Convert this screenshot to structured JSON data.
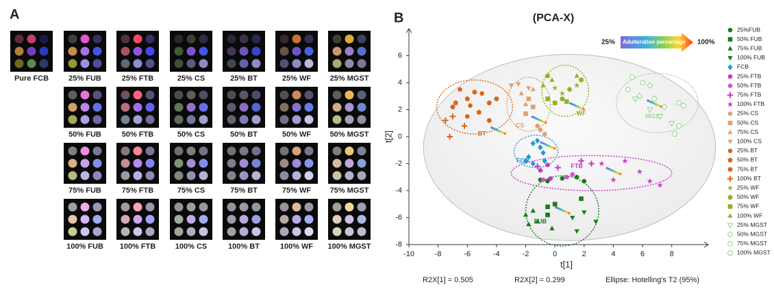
{
  "panel_a": {
    "label": "A",
    "tiles": [
      [
        "Pure FCB"
      ],
      [
        "25% FUB",
        "25% FTB",
        "25% CS",
        "25% BT",
        "25% WF",
        "25% MGST"
      ],
      [
        "50% FUB",
        "50% FTB",
        "50% CS",
        "50% BT",
        "50% WF",
        "50% MGST"
      ],
      [
        "75% FUB",
        "75% FTB",
        "75% CS",
        "75% BT",
        "75% WF",
        "75% MGST"
      ],
      [
        "100% FUB",
        "100% FTB",
        "100% CS",
        "100% BT",
        "100% WF",
        "100% MGST"
      ]
    ]
  },
  "chart_data": {
    "type": "scatter",
    "panel_label": "B",
    "title": "(PCA-X)",
    "x_label": "t[1]",
    "y_label": "t[2]",
    "xlim": [
      -10,
      10.5
    ],
    "ylim": [
      -8,
      8
    ],
    "xticks": [
      -10,
      -8,
      -6,
      -4,
      -2,
      0,
      2,
      4,
      6,
      8
    ],
    "yticks": [
      -8,
      -6,
      -4,
      -2,
      0,
      2,
      4,
      6
    ],
    "footer": [
      "R2X[1] = 0.505",
      "R2X[2] = 0.299",
      "Ellipse: Hotelling's T2 (95%)"
    ],
    "gradient_annotation": {
      "start": "25%",
      "text": "Adulteration percentage",
      "end": "100%"
    },
    "group_labels": [
      "BT",
      "CS",
      "FCB",
      "FTB",
      "FUB",
      "WF",
      "MGST"
    ],
    "series": [
      {
        "name": "25%FUB",
        "color": "#1a7a1a",
        "marker": "circle",
        "x": [
          -1,
          -0.5,
          0.5,
          1.5,
          2
        ],
        "y": [
          -3.2,
          -3.3,
          -3.1,
          -3,
          -3.3
        ]
      },
      {
        "name": "50% FUB",
        "color": "#1a7a1a",
        "marker": "square",
        "x": [
          -0.5,
          0,
          1.8,
          -0.5
        ],
        "y": [
          -5.2,
          -5,
          -4.6,
          -5.8
        ]
      },
      {
        "name": "75% FUB",
        "color": "#1a7a1a",
        "marker": "triangle",
        "x": [
          -2,
          -1.5,
          -1.2,
          -0.2,
          -1.8
        ],
        "y": [
          -5.8,
          -5.5,
          -6.3,
          -6.8,
          -6.5
        ]
      },
      {
        "name": "100% FUB",
        "color": "#1a7a1a",
        "marker": "invtriangle",
        "x": [
          1.2,
          2,
          2.8,
          1.5
        ],
        "y": [
          -6,
          -5.6,
          -6.3,
          -7
        ]
      },
      {
        "name": "FCB",
        "color": "#1e9bd7",
        "marker": "diamond",
        "x": [
          -1.5,
          -1,
          -0.8,
          -1.8,
          -2,
          -1.2,
          -0.7,
          -1.5
        ],
        "y": [
          -0.5,
          -0.8,
          -1.2,
          -1.5,
          -1.8,
          -0.3,
          -1.8,
          -2
        ]
      },
      {
        "name": "25% FTB",
        "color": "#cc33cc",
        "marker": "circle",
        "x": [
          -0.5,
          -1,
          -0.3
        ],
        "y": [
          -2.1,
          -2.5,
          -3.1
        ]
      },
      {
        "name": "50% FTB",
        "color": "#d94cd9",
        "marker": "circle",
        "x": [
          0.8,
          1.2,
          -0.8
        ],
        "y": [
          -3,
          -2.8,
          -3.2
        ]
      },
      {
        "name": "75% FTB",
        "color": "#cc33cc",
        "marker": "plus",
        "x": [
          -1.2,
          0.2,
          1.8,
          2.5
        ],
        "y": [
          -2.2,
          -2.3,
          -1.8,
          -2
        ]
      },
      {
        "name": "100% FTB",
        "color": "#cc33cc",
        "marker": "star",
        "x": [
          3.2,
          4.8,
          5.8,
          6.5,
          7.2,
          4
        ],
        "y": [
          -2,
          -1.8,
          -2.6,
          -3.3,
          -3.6,
          -3.2
        ]
      },
      {
        "name": "25% CS",
        "color": "#e0a070",
        "marker": "circle",
        "x": [
          -1,
          -0.7,
          -1.2
        ],
        "y": [
          0.5,
          0.2,
          0.8
        ]
      },
      {
        "name": "50% CS",
        "color": "#e0a070",
        "marker": "square",
        "x": [
          -2,
          -1.5,
          -1.8
        ],
        "y": [
          1.7,
          2.2,
          2.8
        ]
      },
      {
        "name": "75% CS",
        "color": "#e0a070",
        "marker": "triangle",
        "x": [
          -2.3,
          -1.5,
          -2
        ],
        "y": [
          3.2,
          3.5,
          2.4
        ]
      },
      {
        "name": "100% CS",
        "color": "#e0a070",
        "marker": "invtriangle",
        "x": [
          -3,
          -2.5,
          -1.8
        ],
        "y": [
          3.8,
          3.9,
          3.6
        ]
      },
      {
        "name": "25% BT",
        "color": "#d4661c",
        "marker": "circle",
        "x": [
          -6.5,
          -5.8,
          -5,
          -6
        ],
        "y": [
          3.5,
          2.3,
          3.2,
          1.5
        ]
      },
      {
        "name": "50% BT",
        "color": "#d4661c",
        "marker": "pentagon",
        "x": [
          -6,
          -5.2,
          -4.5,
          -6.8
        ],
        "y": [
          2.8,
          1.8,
          2.5,
          2.5
        ]
      },
      {
        "name": "75% BT",
        "color": "#d4661c",
        "marker": "hexagon",
        "x": [
          -7,
          -5.5,
          -4,
          -4.5
        ],
        "y": [
          2.2,
          3.3,
          2.8,
          1.2
        ]
      },
      {
        "name": "100% BT",
        "color": "#d4661c",
        "marker": "plus",
        "x": [
          -7.5,
          -7.2,
          -7,
          -6.2
        ],
        "y": [
          1.2,
          0,
          1.5,
          0.8
        ]
      },
      {
        "name": "25% WF",
        "color": "#8db51f",
        "marker": "star",
        "x": [
          0,
          0.5,
          1.5
        ],
        "y": [
          3.6,
          3.2,
          3.8
        ]
      },
      {
        "name": "50% WF",
        "color": "#8db51f",
        "marker": "hexagon",
        "x": [
          -0.5,
          1,
          0.5,
          1.8
        ],
        "y": [
          4.5,
          3.5,
          2.8,
          4.2
        ]
      },
      {
        "name": "75% WF",
        "color": "#8db51f",
        "marker": "square",
        "x": [
          0,
          -0.5,
          0.8
        ],
        "y": [
          2.5,
          2.8,
          2.6
        ]
      },
      {
        "name": "100% WF",
        "color": "#8db51f",
        "marker": "triangle",
        "x": [
          -0.8,
          -0.2,
          1.5
        ],
        "y": [
          3.8,
          4.2,
          4.5
        ]
      },
      {
        "name": "25% MGST",
        "color": "#9fd89a",
        "marker": "invtriangle",
        "hollow": true,
        "x": [
          6.5,
          7.2,
          8,
          5.5
        ],
        "y": [
          2,
          1.5,
          1,
          2.8
        ]
      },
      {
        "name": "50% MGST",
        "color": "#9fd89a",
        "marker": "diamond",
        "hollow": true,
        "x": [
          5.8,
          6.5,
          7.5
        ],
        "y": [
          3,
          3.8,
          2.2
        ]
      },
      {
        "name": "75% MGST",
        "color": "#9fd89a",
        "marker": "circle",
        "hollow": true,
        "x": [
          5,
          6,
          8.5,
          8.8
        ],
        "y": [
          3.5,
          4,
          2.5,
          2.3
        ]
      },
      {
        "name": "100% MGST",
        "color": "#9fd89a",
        "marker": "hexagon",
        "hollow": true,
        "x": [
          5.3,
          6.8,
          8.2,
          8.5
        ],
        "y": [
          4.4,
          2.8,
          0.2,
          0.8
        ]
      }
    ]
  }
}
